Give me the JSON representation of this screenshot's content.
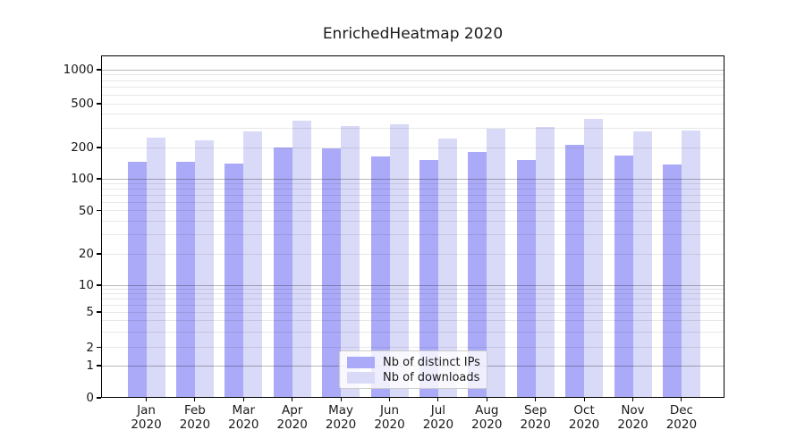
{
  "chart_data": {
    "type": "bar",
    "title": "EnrichedHeatmap 2020",
    "categories": [
      "Jan",
      "Feb",
      "Mar",
      "Apr",
      "May",
      "Jun",
      "Jul",
      "Aug",
      "Sep",
      "Oct",
      "Nov",
      "Dec"
    ],
    "year_label": "2020",
    "series": [
      {
        "name": "Nb of distinct IPs",
        "color": "#aaaaf8",
        "values": [
          145,
          145,
          140,
          200,
          195,
          165,
          152,
          180,
          152,
          213,
          168,
          137
        ]
      },
      {
        "name": "Nb of downloads",
        "color": "#d9d9f8",
        "values": [
          244,
          232,
          281,
          350,
          315,
          323,
          240,
          295,
          310,
          361,
          281,
          286
        ]
      }
    ],
    "xlabel": "",
    "ylabel": "",
    "yscale": "symlog",
    "ylim": [
      0,
      1400
    ],
    "yticks": [
      0,
      1,
      2,
      5,
      10,
      20,
      50,
      100,
      200,
      500,
      1000
    ],
    "ytick_labels": [
      "0",
      "1",
      "2",
      "5",
      "10",
      "20",
      "50",
      "100",
      "200",
      "500",
      "1000"
    ],
    "major_gridline_values": [
      1,
      10,
      100,
      1000
    ],
    "minor_gridline_values": [
      2,
      3,
      4,
      5,
      6,
      7,
      8,
      9,
      20,
      30,
      40,
      50,
      60,
      70,
      80,
      90,
      200,
      300,
      400,
      500,
      600,
      700,
      800,
      900
    ],
    "grid": true,
    "legend": {
      "position": "lower-center",
      "labels": [
        "Nb of distinct IPs",
        "Nb of downloads"
      ]
    }
  },
  "colors": {
    "distinct_ips": "#aaaaf8",
    "downloads": "#d9d9f8",
    "axis": "#000000",
    "text": "#1a1a1a",
    "legend_border": "#cccccc"
  }
}
